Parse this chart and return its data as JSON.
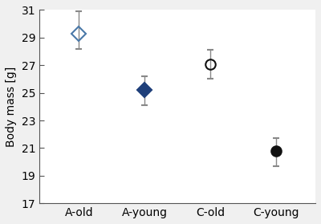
{
  "categories": [
    "A-old",
    "A-young",
    "C-old",
    "C-young"
  ],
  "values": [
    29.3,
    25.2,
    27.1,
    20.8
  ],
  "errors_upper": [
    1.6,
    1.0,
    1.0,
    0.9
  ],
  "errors_lower": [
    1.1,
    1.1,
    1.1,
    1.1
  ],
  "markers": [
    "D",
    "D",
    "o",
    "o"
  ],
  "facecolors": [
    "none",
    "#1f3f7a",
    "none",
    "#111111"
  ],
  "edgecolors": [
    "#4a78a8",
    "#1f3f7a",
    "#111111",
    "#111111"
  ],
  "ylabel": "Body mass [g]",
  "ylim": [
    17,
    31
  ],
  "yticks": [
    17,
    19,
    21,
    23,
    25,
    27,
    29,
    31
  ],
  "ecolor": "#888888",
  "capsize": 3,
  "background_color": "#f0f0f0",
  "plot_bg_color": "#ffffff"
}
